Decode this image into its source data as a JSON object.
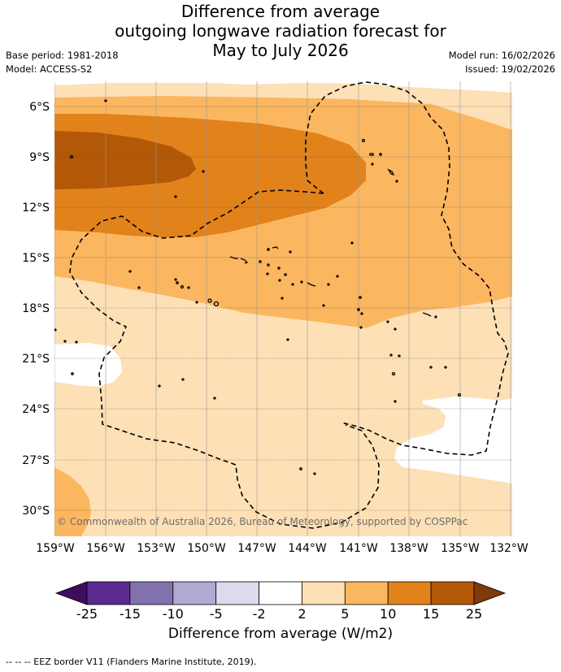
{
  "header": {
    "title_line1": "Difference from average",
    "title_line2": "outgoing longwave radiation forecast for",
    "title_line3": "May to July 2026",
    "base_period": "Base period: 1981-2018",
    "model": "Model: ACCESS-S2",
    "model_run": "Model run: 16/02/2026",
    "issued": "Issued: 19/02/2026"
  },
  "map": {
    "lat_labels": [
      "6°S",
      "9°S",
      "12°S",
      "15°S",
      "18°S",
      "21°S",
      "24°S",
      "27°S",
      "30°S"
    ],
    "lon_labels": [
      "159°W",
      "156°W",
      "153°W",
      "150°W",
      "147°W",
      "144°W",
      "141°W",
      "138°W",
      "135°W",
      "132°W"
    ],
    "copyright": "© Commonwealth of Australia 2026, Bureau of Meteorology, supported by COSPPac"
  },
  "colorbar": {
    "ticks": [
      "-25",
      "-15",
      "-10",
      "-5",
      "-2",
      "2",
      "5",
      "10",
      "15",
      "25"
    ],
    "colors": [
      "#3f0d60",
      "#5a2a8e",
      "#8172ad",
      "#b2a9d2",
      "#dcdaec",
      "#ffffff",
      "#fde0b6",
      "#fbb660",
      "#e2821a",
      "#b35807",
      "#7e3a08"
    ],
    "title": "Difference from average (W/m2)"
  },
  "footnote": "--  --  -- EEZ border V11 (Flanders Marine Institute, 2019)."
}
